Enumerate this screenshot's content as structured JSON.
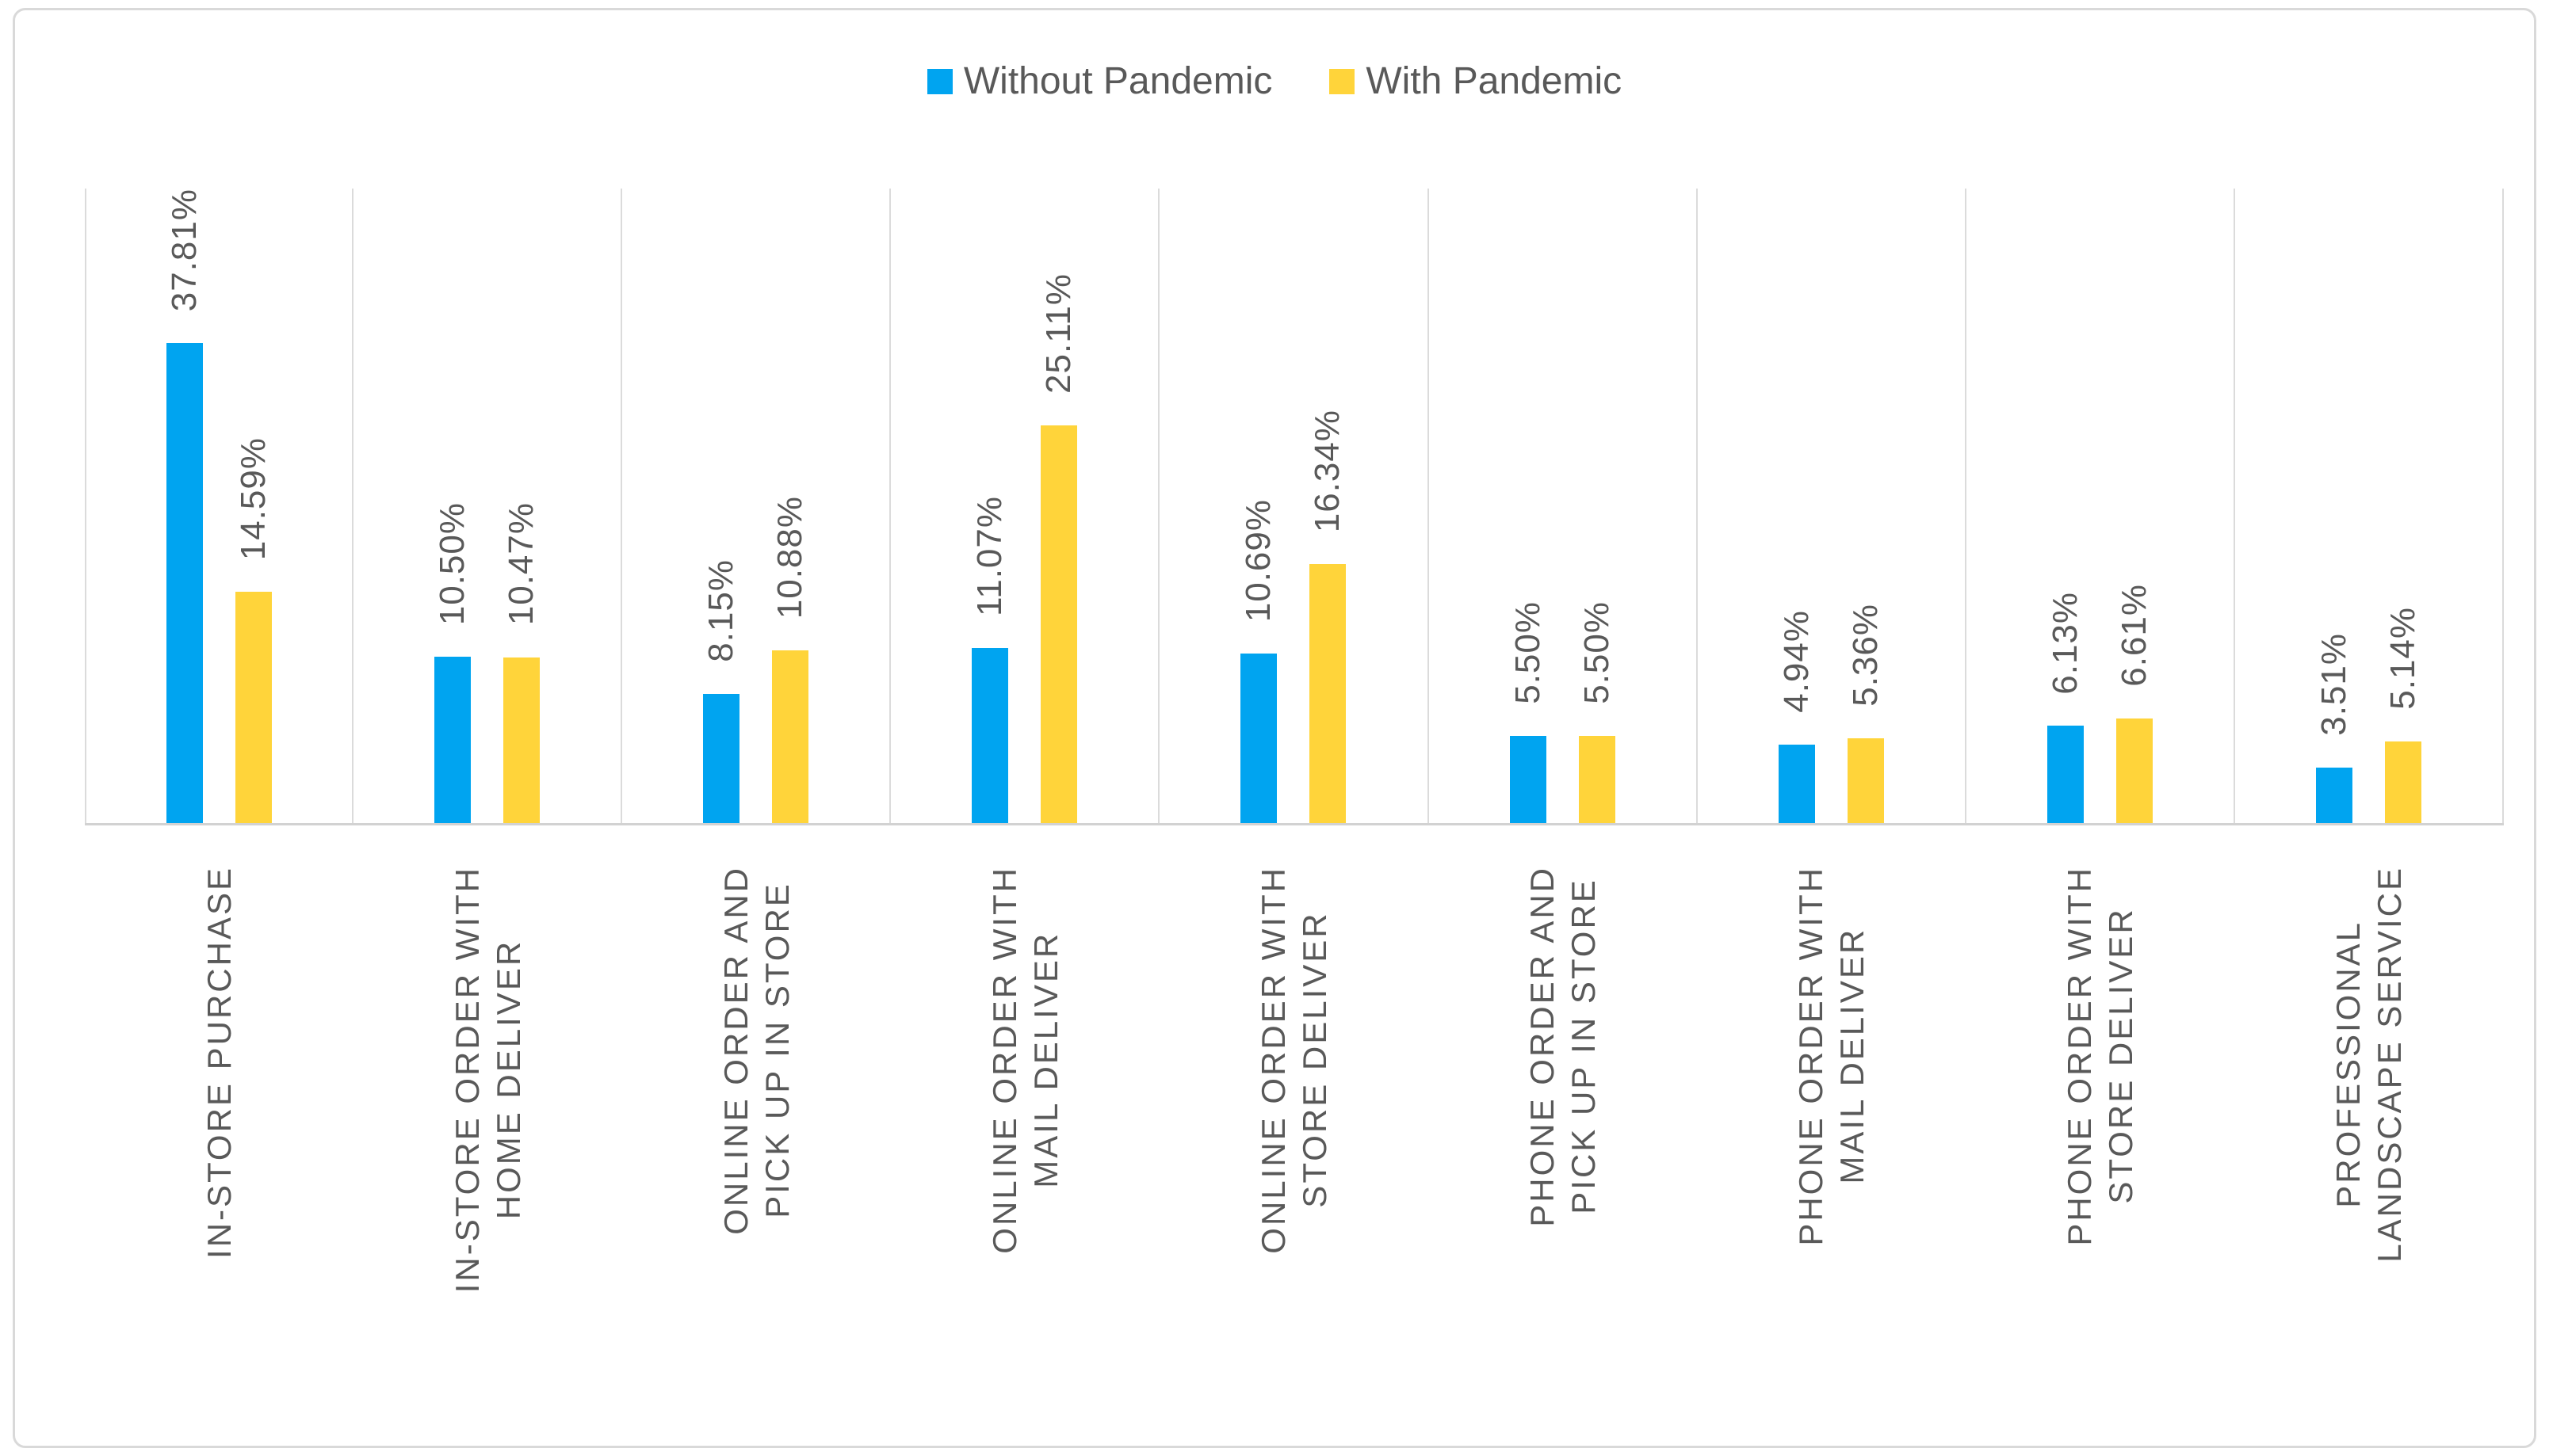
{
  "legend": {
    "items": [
      {
        "label": "Without Pandemic",
        "color": "#00A4F0"
      },
      {
        "label": "With Pandemic",
        "color": "#FFD43A"
      }
    ]
  },
  "chart_data": {
    "type": "bar",
    "title": "",
    "xlabel": "",
    "ylabel": "",
    "ylim": [
      0,
      40
    ],
    "y_axis_visible": false,
    "legend_position": "top-center",
    "gridlines": "vertical-category-separators",
    "value_label_style": "outside-end-rotated-90",
    "category_label_style": "rotated-90-uppercase",
    "categories": [
      "IN-STORE PURCHASE",
      "IN-STORE ORDER WITH HOME DELIVER",
      "ONLINE ORDER AND PICK UP IN STORE",
      "ONLINE ORDER WITH MAIL DELIVER",
      "ONLINE ORDER WITH STORE DELIVER",
      "PHONE ORDER AND PICK UP IN STORE",
      "PHONE ORDER WITH MAIL DELIVER",
      "PHONE ORDER WITH STORE DELIVER",
      "PROFESSIONAL LANDSCAPE SERVICE"
    ],
    "category_lines": [
      [
        "IN-STORE PURCHASE"
      ],
      [
        "IN-STORE ORDER WITH",
        "HOME DELIVER"
      ],
      [
        "ONLINE ORDER AND",
        "PICK UP IN STORE"
      ],
      [
        "ONLINE ORDER WITH",
        "MAIL DELIVER"
      ],
      [
        "ONLINE ORDER WITH",
        "STORE DELIVER"
      ],
      [
        "PHONE ORDER AND",
        "PICK UP IN STORE"
      ],
      [
        "PHONE ORDER WITH",
        "MAIL DELIVER"
      ],
      [
        "PHONE ORDER WITH",
        "STORE DELIVER"
      ],
      [
        "PROFESSIONAL",
        "LANDSCAPE SERVICE"
      ]
    ],
    "series": [
      {
        "name": "Without Pandemic",
        "color": "#00A4F0",
        "values": [
          37.81,
          10.5,
          8.15,
          11.07,
          10.69,
          5.5,
          4.94,
          6.13,
          3.51
        ],
        "labels": [
          "37.81%",
          "10.50%",
          "8.15%",
          "11.07%",
          "10.69%",
          "5.50%",
          "4.94%",
          "6.13%",
          "3.51%"
        ]
      },
      {
        "name": "With Pandemic",
        "color": "#FFD43A",
        "values": [
          14.59,
          10.47,
          10.88,
          25.11,
          16.34,
          5.5,
          5.36,
          6.61,
          5.14
        ],
        "labels": [
          "14.59%",
          "10.47%",
          "10.88%",
          "25.11%",
          "16.34%",
          "5.50%",
          "5.36%",
          "6.61%",
          "5.14%"
        ]
      }
    ]
  }
}
